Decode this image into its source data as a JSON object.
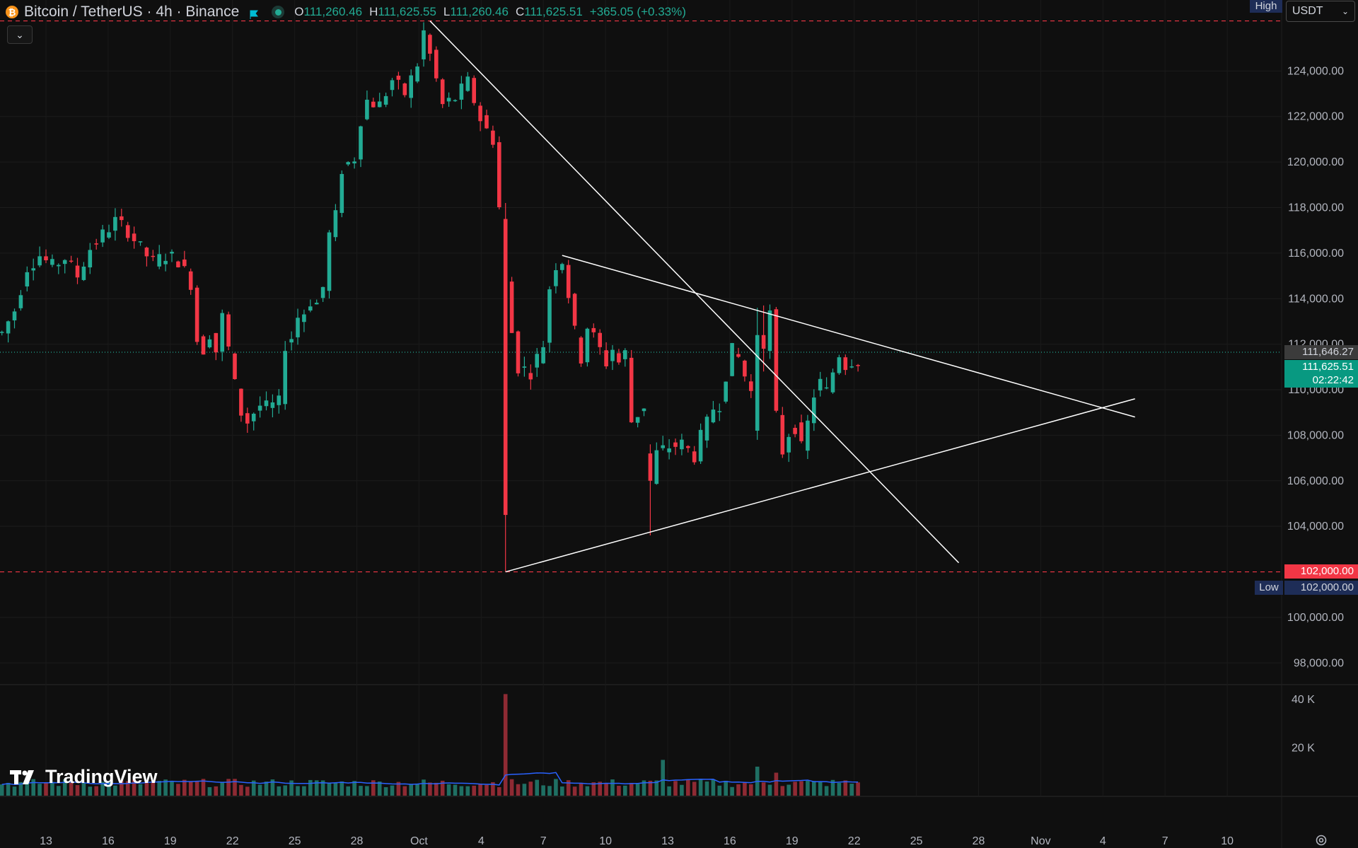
{
  "legend": {
    "title": "Bitcoin / TetherUS · 4h · Binance",
    "open_label": "O",
    "open": "111,260.46",
    "high_label": "H",
    "high": "111,625.55",
    "low_label": "L",
    "low": "111,260.46",
    "close_label": "C",
    "close": "111,625.51",
    "change": "+365.05 (+0.33%)"
  },
  "currency": "USDT",
  "markers": {
    "high_label": "High",
    "low_label": "Low",
    "low_value": "102,000.00",
    "support_value": "102,000.00",
    "last_value": "111,646.27",
    "close_value": "111,625.51",
    "countdown": "02:22:42"
  },
  "branding": "TradingView",
  "icons": [
    "bitcoin-icon",
    "flag-icon",
    "live-status-icon",
    "chevron-down-icon",
    "tradingview-logo-icon",
    "settings-icon"
  ],
  "colors": {
    "up": "#22ab94",
    "down": "#f23645",
    "background": "#0f0f0f",
    "volume_ma": "#2962ff",
    "trendline": "#ffffff"
  },
  "chart_data": {
    "type": "candlestick",
    "symbol": "BTCUSDT",
    "timeframe": "4h",
    "x_tick_labels": [
      "13",
      "16",
      "19",
      "22",
      "25",
      "28",
      "Oct",
      "4",
      "7",
      "10",
      "13",
      "16",
      "19",
      "22",
      "25",
      "28",
      "Nov",
      "4",
      "7",
      "10"
    ],
    "y_tick_labels": [
      "98,000.00",
      "100,000.00",
      "104,000.00",
      "106,000.00",
      "108,000.00",
      "110,000.00",
      "112,000.00",
      "114,000.00",
      "116,000.00",
      "118,000.00",
      "120,000.00",
      "122,000.00",
      "124,000.00"
    ],
    "y_range": [
      96700,
      126500
    ],
    "volume_tick_labels": [
      "20 K",
      "40 K"
    ],
    "volume_range": [
      0,
      44000
    ],
    "price_path": [
      [
        0,
        112500
      ],
      [
        2,
        113500
      ],
      [
        4,
        115400
      ],
      [
        6,
        115900
      ],
      [
        8,
        115400
      ],
      [
        10,
        115800
      ],
      [
        12,
        115000
      ],
      [
        14,
        116200
      ],
      [
        16,
        116800
      ],
      [
        18,
        117400
      ],
      [
        20,
        117000
      ],
      [
        22,
        116200
      ],
      [
        24,
        115600
      ],
      [
        26,
        115900
      ],
      [
        28,
        115700
      ],
      [
        30,
        114700
      ],
      [
        31,
        112200
      ],
      [
        32,
        111800
      ],
      [
        33,
        112500
      ],
      [
        34,
        111700
      ],
      [
        35,
        113200
      ],
      [
        36,
        111800
      ],
      [
        37,
        110200
      ],
      [
        38,
        109000
      ],
      [
        39,
        108600
      ],
      [
        40,
        109000
      ],
      [
        41,
        109300
      ],
      [
        42,
        109200
      ],
      [
        44,
        109400
      ],
      [
        45,
        112000
      ],
      [
        46,
        112300
      ],
      [
        47,
        113200
      ],
      [
        48,
        113400
      ],
      [
        49,
        113900
      ],
      [
        50,
        113800
      ],
      [
        51,
        114500
      ],
      [
        52,
        116800
      ],
      [
        53,
        117600
      ],
      [
        54,
        119700
      ],
      [
        56,
        120200
      ],
      [
        57,
        121900
      ],
      [
        58,
        122700
      ],
      [
        60,
        122500
      ],
      [
        62,
        123600
      ],
      [
        64,
        123000
      ],
      [
        66,
        124300
      ],
      [
        67,
        125700
      ],
      [
        68,
        124700
      ],
      [
        70,
        122500
      ],
      [
        72,
        122800
      ],
      [
        74,
        123500
      ],
      [
        76,
        121900
      ],
      [
        77,
        121400
      ],
      [
        78,
        121000
      ],
      [
        79,
        118000
      ],
      [
        80,
        115000
      ],
      [
        81,
        112500
      ],
      [
        82,
        111000
      ],
      [
        84,
        110800
      ],
      [
        86,
        112000
      ],
      [
        87,
        114500
      ],
      [
        88,
        115500
      ],
      [
        89,
        115700
      ],
      [
        90,
        114200
      ],
      [
        91,
        112500
      ],
      [
        92,
        111400
      ],
      [
        93,
        112800
      ],
      [
        94,
        112300
      ],
      [
        96,
        111200
      ],
      [
        97,
        111800
      ],
      [
        98,
        111200
      ],
      [
        99,
        111600
      ],
      [
        100,
        108600
      ],
      [
        102,
        109300
      ],
      [
        103,
        105900
      ],
      [
        104,
        107200
      ],
      [
        106,
        107500
      ],
      [
        108,
        107600
      ],
      [
        110,
        107100
      ],
      [
        111,
        107900
      ],
      [
        112,
        108500
      ],
      [
        113,
        109200
      ],
      [
        114,
        109400
      ],
      [
        115,
        110700
      ],
      [
        116,
        111700
      ],
      [
        117,
        111400
      ],
      [
        118,
        110600
      ],
      [
        119,
        109900
      ],
      [
        120,
        108200
      ],
      [
        121,
        111700
      ],
      [
        122,
        113300
      ],
      [
        123,
        108800
      ],
      [
        124,
        107300
      ],
      [
        125,
        108100
      ],
      [
        126,
        108400
      ],
      [
        127,
        107400
      ],
      [
        128,
        108500
      ],
      [
        129,
        109800
      ],
      [
        130,
        110300
      ],
      [
        131,
        109900
      ],
      [
        132,
        110800
      ],
      [
        133,
        111600
      ],
      [
        134,
        111100
      ],
      [
        135,
        111300
      ],
      [
        136,
        111300
      ]
    ],
    "special_candles": [
      {
        "i": 80,
        "o": 117500,
        "h": 118200,
        "l": 102000,
        "c": 104500
      },
      {
        "i": 103,
        "o": 107200,
        "h": 107600,
        "l": 103600,
        "c": 106000
      },
      {
        "i": 120,
        "o": 108200,
        "h": 113600,
        "l": 107800,
        "c": 112400
      },
      {
        "i": 121,
        "o": 112400,
        "h": 113700,
        "l": 110800,
        "c": 111800
      }
    ],
    "volume_spikes": [
      {
        "i": 80,
        "v": 42000
      },
      {
        "i": 105,
        "v": 14800
      },
      {
        "i": 120,
        "v": 12000
      },
      {
        "i": 123,
        "v": 9500
      }
    ],
    "trendlines": [
      {
        "name": "descending-resistance",
        "from": [
          68,
          126200
        ],
        "to": [
          152,
          102400
        ]
      },
      {
        "name": "upper-triangle-line",
        "from": [
          89,
          115900
        ],
        "to": [
          180,
          108800
        ]
      },
      {
        "name": "lower-triangle-line",
        "from": [
          80,
          102000
        ],
        "to": [
          180,
          109600
        ]
      }
    ],
    "horizontal_lines": [
      {
        "name": "high-level",
        "price": 126200,
        "style": "dashed",
        "color": "#f23645"
      },
      {
        "name": "low-level",
        "price": 102000,
        "style": "dashed",
        "color": "#f23645"
      },
      {
        "name": "last-price",
        "price": 111646.27,
        "style": "dotted",
        "color": "#22ab94"
      }
    ]
  }
}
